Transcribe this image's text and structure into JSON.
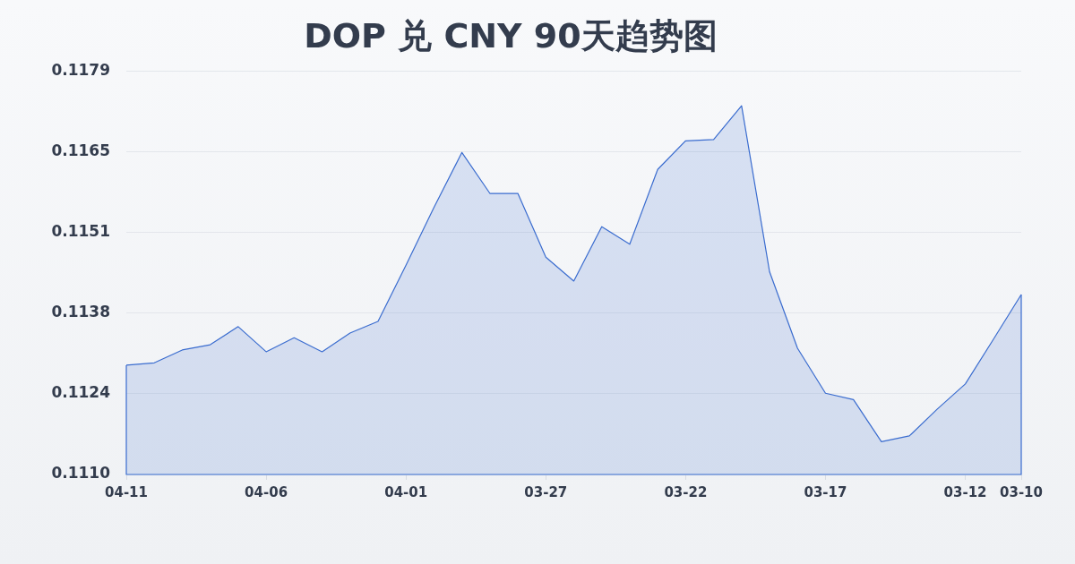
{
  "chart_data": {
    "type": "area",
    "title": "DOP 兑 CNY 90天趋势图",
    "categories": [
      "04-11",
      null,
      null,
      null,
      null,
      "04-06",
      null,
      null,
      null,
      null,
      "04-01",
      null,
      null,
      null,
      null,
      "03-27",
      null,
      null,
      null,
      null,
      "03-22",
      null,
      null,
      null,
      null,
      "03-17",
      null,
      null,
      null,
      null,
      "03-12",
      null,
      "03-10"
    ],
    "values": [
      0.11287,
      0.11291,
      0.11313,
      0.11322,
      0.11353,
      0.1131,
      0.11334,
      0.1131,
      0.11342,
      0.11362,
      0.11458,
      0.11557,
      0.11651,
      0.11581,
      0.11581,
      0.11472,
      0.11431,
      0.11524,
      0.11494,
      0.11622,
      0.11671,
      0.11673,
      0.11731,
      0.11447,
      0.11316,
      0.11239,
      0.11228,
      0.11156,
      0.11166,
      0.11212,
      0.11255,
      0.11331,
      0.11408
    ],
    "color": "#3a6ccf",
    "ylim": [
      0.111,
      0.1179
    ],
    "yticks": [
      {
        "value": 0.111,
        "label": "0.1110"
      },
      {
        "value": 0.11238,
        "label": "0.1124"
      },
      {
        "value": 0.11376,
        "label": "0.1138"
      },
      {
        "value": 0.11514,
        "label": "0.1151"
      },
      {
        "value": 0.11652,
        "label": "0.1165"
      },
      0.1179
    ],
    "grid": "y",
    "marker": "none"
  }
}
